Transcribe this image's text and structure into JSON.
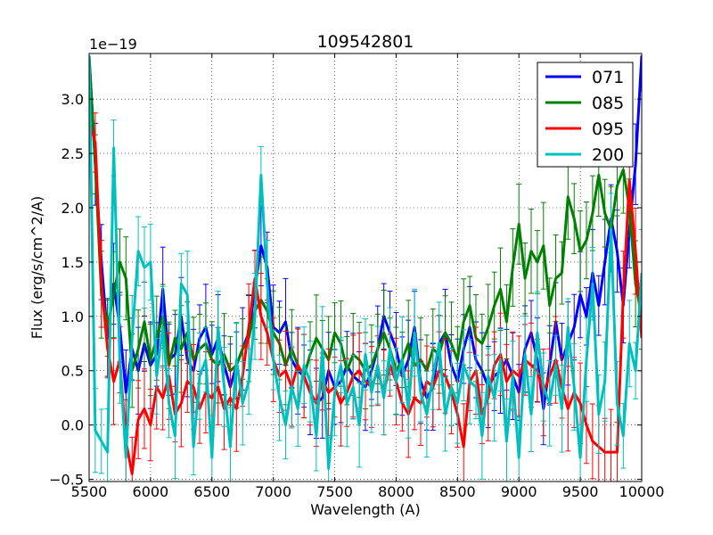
{
  "chart_data": {
    "type": "line",
    "title": "109542801",
    "xlabel": "Wavelength (A)",
    "ylabel": "Flux (erg/s/cm^2/A)",
    "y_offset_label": "1e−19",
    "xlim": [
      5500,
      10000
    ],
    "ylim": [
      -0.52,
      3.42
    ],
    "xticks": [
      5500,
      6000,
      6500,
      7000,
      7500,
      8000,
      8500,
      9000,
      9500,
      10000
    ],
    "xtick_labels": [
      "5500",
      "6000",
      "6500",
      "7000",
      "7500",
      "8000",
      "8500",
      "9000",
      "9500",
      "10000"
    ],
    "yticks": [
      -0.5,
      0.0,
      0.5,
      1.0,
      1.5,
      2.0,
      2.5,
      3.0
    ],
    "ytick_labels": [
      "−0.5",
      "0.0",
      "0.5",
      "1.0",
      "1.5",
      "2.0",
      "2.5",
      "3.0"
    ],
    "grid": true,
    "legend_position": "top-right",
    "series": [
      {
        "name": "071",
        "color": "#0000ff",
        "x": [
          5500,
          5550,
          5600,
          5650,
          5700,
          5750,
          5800,
          5850,
          5900,
          5950,
          6000,
          6050,
          6100,
          6150,
          6200,
          6250,
          6300,
          6350,
          6400,
          6450,
          6500,
          6550,
          6600,
          6650,
          6700,
          6750,
          6800,
          6850,
          6900,
          6950,
          7000,
          7050,
          7100,
          7150,
          7200,
          7250,
          7300,
          7350,
          7400,
          7450,
          7500,
          7550,
          7600,
          7650,
          7700,
          7750,
          7800,
          7850,
          7900,
          7950,
          8000,
          8050,
          8100,
          8150,
          8200,
          8250,
          8300,
          8350,
          8400,
          8450,
          8500,
          8550,
          8600,
          8650,
          8700,
          8750,
          8800,
          8850,
          8900,
          8950,
          9000,
          9050,
          9100,
          9150,
          9200,
          9250,
          9300,
          9350,
          9400,
          9450,
          9500,
          9550,
          9600,
          9650,
          9700,
          9750,
          9800,
          9850,
          9900,
          9950,
          10000
        ],
        "y": [
          3.4,
          2.4,
          1.5,
          0.8,
          1.3,
          0.9,
          0.3,
          0.7,
          0.5,
          0.75,
          0.55,
          0.65,
          1.25,
          0.6,
          0.65,
          1.0,
          0.6,
          0.5,
          0.8,
          0.9,
          0.65,
          0.8,
          0.55,
          0.35,
          0.55,
          0.7,
          0.85,
          1.25,
          1.65,
          1.45,
          0.9,
          0.85,
          0.95,
          0.6,
          0.5,
          0.45,
          0.3,
          0.2,
          0.25,
          0.5,
          0.35,
          0.4,
          0.55,
          0.45,
          0.4,
          0.35,
          0.5,
          0.7,
          1.0,
          0.85,
          0.7,
          0.45,
          0.6,
          0.9,
          0.4,
          0.25,
          0.35,
          0.75,
          0.85,
          0.55,
          0.4,
          0.7,
          0.9,
          0.6,
          0.5,
          0.35,
          0.45,
          0.5,
          0.6,
          0.45,
          0.3,
          0.7,
          0.85,
          0.6,
          0.15,
          0.55,
          0.95,
          0.6,
          0.75,
          0.9,
          1.2,
          1.0,
          1.4,
          1.1,
          1.5,
          1.9,
          1.6,
          1.1,
          1.8,
          2.4,
          3.4
        ]
      },
      {
        "name": "085",
        "color": "#008000",
        "x": [
          5500,
          5550,
          5600,
          5650,
          5700,
          5750,
          5800,
          5850,
          5900,
          5950,
          6000,
          6050,
          6100,
          6150,
          6200,
          6250,
          6300,
          6350,
          6400,
          6450,
          6500,
          6550,
          6600,
          6650,
          6700,
          6750,
          6800,
          6850,
          6900,
          6950,
          7000,
          7050,
          7100,
          7150,
          7200,
          7250,
          7300,
          7350,
          7400,
          7450,
          7500,
          7550,
          7600,
          7650,
          7700,
          7750,
          7800,
          7850,
          7900,
          7950,
          8000,
          8050,
          8100,
          8150,
          8200,
          8250,
          8300,
          8350,
          8400,
          8450,
          8500,
          8550,
          8600,
          8650,
          8700,
          8750,
          8800,
          8850,
          8900,
          8950,
          9000,
          9050,
          9100,
          9150,
          9200,
          9250,
          9300,
          9350,
          9400,
          9450,
          9500,
          9550,
          9600,
          9650,
          9700,
          9750,
          9800,
          9850,
          9900,
          9950,
          10000
        ],
        "y": [
          3.4,
          2.4,
          1.2,
          0.9,
          1.2,
          1.5,
          1.35,
          0.5,
          0.7,
          0.95,
          0.6,
          0.8,
          1.0,
          0.55,
          0.8,
          0.7,
          0.85,
          0.6,
          0.7,
          0.75,
          0.6,
          0.55,
          0.65,
          0.5,
          0.55,
          0.7,
          0.8,
          1.05,
          1.15,
          1.05,
          0.85,
          0.75,
          0.55,
          0.7,
          0.55,
          0.45,
          0.65,
          0.8,
          0.7,
          0.6,
          0.85,
          0.75,
          0.5,
          0.65,
          0.6,
          0.5,
          0.55,
          0.7,
          0.85,
          0.7,
          0.5,
          0.6,
          0.75,
          0.55,
          0.6,
          0.5,
          0.7,
          0.65,
          0.85,
          0.75,
          0.6,
          0.95,
          1.1,
          0.8,
          0.75,
          0.9,
          1.1,
          1.25,
          0.95,
          1.45,
          1.85,
          1.35,
          1.6,
          1.5,
          1.65,
          1.1,
          1.35,
          1.4,
          2.1,
          1.9,
          1.6,
          1.7,
          1.95,
          2.3,
          1.95,
          1.8,
          2.2,
          2.35,
          2.0,
          1.3,
          1.0
        ]
      },
      {
        "name": "095",
        "color": "#ff0000",
        "x": [
          5500,
          5550,
          5600,
          5650,
          5700,
          5750,
          5800,
          5850,
          5900,
          5950,
          6000,
          6050,
          6100,
          6150,
          6200,
          6250,
          6300,
          6350,
          6400,
          6450,
          6500,
          6550,
          6600,
          6650,
          6700,
          6750,
          6800,
          6850,
          6900,
          6950,
          7000,
          7050,
          7100,
          7150,
          7200,
          7250,
          7300,
          7350,
          7400,
          7450,
          7500,
          7550,
          7600,
          7650,
          7700,
          7750,
          7800,
          7850,
          7900,
          7950,
          8000,
          8050,
          8100,
          8150,
          8200,
          8250,
          8300,
          8350,
          8400,
          8450,
          8500,
          8550,
          8600,
          8650,
          8700,
          8750,
          8800,
          8850,
          8900,
          8950,
          9000,
          9050,
          9100,
          9150,
          9200,
          9250,
          9300,
          9350,
          9400,
          9450,
          9500,
          9550,
          9600,
          9650,
          9700,
          9750,
          9800,
          9850,
          9900,
          9950,
          10000
        ],
        "y": [
          2.8,
          2.6,
          1.3,
          0.7,
          0.4,
          0.6,
          -0.15,
          -0.45,
          0.05,
          0.15,
          0.0,
          0.35,
          0.25,
          0.45,
          0.1,
          0.2,
          0.4,
          0.35,
          0.15,
          0.3,
          0.25,
          0.35,
          0.15,
          0.25,
          0.15,
          0.45,
          0.9,
          1.35,
          1.0,
          0.85,
          0.6,
          0.45,
          0.5,
          0.35,
          0.55,
          0.45,
          0.3,
          0.2,
          0.4,
          0.3,
          0.35,
          0.2,
          0.3,
          0.45,
          0.5,
          0.4,
          0.35,
          0.5,
          0.3,
          0.55,
          0.4,
          0.2,
          0.1,
          0.25,
          0.2,
          0.4,
          0.35,
          0.5,
          0.45,
          0.3,
          0.1,
          -0.2,
          0.4,
          0.5,
          0.1,
          0.25,
          0.55,
          0.65,
          0.4,
          0.5,
          0.45,
          0.6,
          0.55,
          0.5,
          0.3,
          0.45,
          0.6,
          0.35,
          0.15,
          0.3,
          0.2,
          0.0,
          -0.15,
          -0.2,
          -0.25,
          -0.25,
          -0.25,
          1.2,
          2.25,
          1.6,
          0.8
        ]
      },
      {
        "name": "200",
        "color": "#00bfbf",
        "x": [
          5500,
          5550,
          5600,
          5650,
          5700,
          5750,
          5800,
          5850,
          5900,
          5950,
          6000,
          6050,
          6100,
          6150,
          6200,
          6250,
          6300,
          6350,
          6400,
          6450,
          6500,
          6550,
          6600,
          6650,
          6700,
          6750,
          6800,
          6850,
          6900,
          6950,
          7000,
          7050,
          7100,
          7150,
          7200,
          7250,
          7300,
          7350,
          7400,
          7450,
          7500,
          7550,
          7600,
          7650,
          7700,
          7750,
          7800,
          7850,
          7900,
          7950,
          8000,
          8050,
          8100,
          8150,
          8200,
          8250,
          8300,
          8350,
          8400,
          8450,
          8500,
          8550,
          8600,
          8650,
          8700,
          8750,
          8800,
          8850,
          8900,
          8950,
          9000,
          9050,
          9100,
          9150,
          9200,
          9250,
          9300,
          9350,
          9400,
          9450,
          9500,
          9550,
          9600,
          9650,
          9700,
          9750,
          9800,
          9850,
          9900,
          9950,
          10000
        ],
        "y": [
          3.4,
          -0.05,
          -0.15,
          -0.25,
          2.55,
          0.6,
          -0.3,
          0.8,
          1.6,
          1.45,
          1.5,
          0.45,
          0.9,
          0.2,
          -0.1,
          1.3,
          1.2,
          -0.2,
          0.45,
          0.6,
          -0.3,
          0.9,
          0.35,
          -0.2,
          0.6,
          0.2,
          0.4,
          1.0,
          2.3,
          1.3,
          0.6,
          0.25,
          0.0,
          0.35,
          0.15,
          0.55,
          0.4,
          -0.1,
          0.7,
          -0.4,
          0.3,
          0.55,
          0.2,
          0.35,
          0.0,
          0.65,
          0.3,
          0.55,
          0.25,
          0.7,
          0.4,
          0.6,
          0.15,
          0.85,
          0.3,
          0.1,
          0.45,
          0.75,
          0.1,
          0.35,
          0.2,
          0.55,
          0.4,
          0.35,
          -0.1,
          0.45,
          0.25,
          0.6,
          -0.15,
          0.45,
          -0.3,
          0.65,
          0.1,
          0.85,
          0.35,
          0.2,
          0.55,
          0.15,
          0.9,
          0.35,
          -0.3,
          0.6,
          1.3,
          0.1,
          0.4,
          1.8,
          0.2,
          -0.1,
          0.75,
          0.5,
          1.4
        ]
      }
    ]
  }
}
